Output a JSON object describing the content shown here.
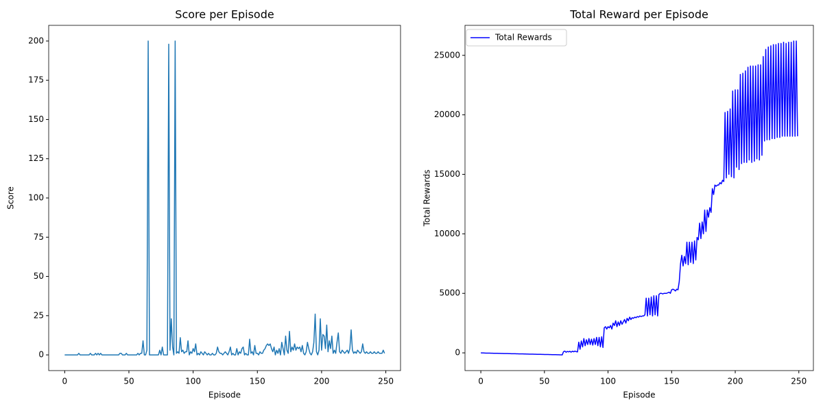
{
  "chart_data": [
    {
      "type": "line",
      "title": "Score per Episode",
      "x_label": "Episode",
      "y_label": "Score",
      "xlim": [
        -12.45,
        261.45
      ],
      "ylim": [
        -10,
        210
      ],
      "xticks": [
        0,
        50,
        100,
        150,
        200,
        250
      ],
      "yticks": [
        0,
        25,
        50,
        75,
        100,
        125,
        150,
        175,
        200
      ],
      "grid": false,
      "x": [
        0,
        1,
        2,
        3,
        4,
        5,
        6,
        7,
        8,
        9,
        10,
        11,
        12,
        13,
        14,
        15,
        16,
        17,
        18,
        19,
        20,
        21,
        22,
        23,
        24,
        25,
        26,
        27,
        28,
        29,
        30,
        31,
        32,
        33,
        34,
        35,
        36,
        37,
        38,
        39,
        40,
        41,
        42,
        43,
        44,
        45,
        46,
        47,
        48,
        49,
        50,
        51,
        52,
        53,
        54,
        55,
        56,
        57,
        58,
        59,
        60,
        61,
        62,
        63,
        64,
        65,
        66,
        67,
        68,
        69,
        70,
        71,
        72,
        73,
        74,
        75,
        76,
        77,
        78,
        79,
        80,
        81,
        82,
        83,
        84,
        85,
        86,
        87,
        88,
        89,
        90,
        91,
        92,
        93,
        94,
        95,
        96,
        97,
        98,
        99,
        100,
        101,
        102,
        103,
        104,
        105,
        106,
        107,
        108,
        109,
        110,
        111,
        112,
        113,
        114,
        115,
        116,
        117,
        118,
        119,
        120,
        121,
        122,
        123,
        124,
        125,
        126,
        127,
        128,
        129,
        130,
        131,
        132,
        133,
        134,
        135,
        136,
        137,
        138,
        139,
        140,
        141,
        142,
        143,
        144,
        145,
        146,
        147,
        148,
        149,
        150,
        151,
        152,
        153,
        154,
        155,
        156,
        157,
        158,
        159,
        160,
        161,
        162,
        163,
        164,
        165,
        166,
        167,
        168,
        169,
        170,
        171,
        172,
        173,
        174,
        175,
        176,
        177,
        178,
        179,
        180,
        181,
        182,
        183,
        184,
        185,
        186,
        187,
        188,
        189,
        190,
        191,
        192,
        193,
        194,
        195,
        196,
        197,
        198,
        199,
        200,
        201,
        202,
        203,
        204,
        205,
        206,
        207,
        208,
        209,
        210,
        211,
        212,
        213,
        214,
        215,
        216,
        217,
        218,
        219,
        220,
        221,
        222,
        223,
        224,
        225,
        226,
        227,
        228,
        229,
        230,
        231,
        232,
        233,
        234,
        235,
        236,
        237,
        238,
        239,
        240,
        241,
        242,
        243,
        244,
        245,
        246,
        247,
        248,
        249
      ],
      "series": [
        {
          "color": "#1f77b4",
          "values": [
            0,
            0,
            0,
            0,
            0,
            0,
            0,
            0,
            0,
            0,
            0,
            1,
            0,
            0,
            0,
            0,
            0,
            0,
            0,
            0,
            1,
            0,
            0,
            0,
            1,
            0,
            1,
            0,
            1,
            0,
            0,
            0,
            0,
            0,
            0,
            0,
            0,
            0,
            0,
            0,
            0,
            0,
            0,
            1,
            1,
            0,
            0,
            0,
            1,
            0,
            0,
            0,
            0,
            0,
            0,
            0,
            0,
            1,
            0,
            1,
            1,
            9,
            0,
            0,
            3,
            200,
            0,
            0,
            0,
            0,
            0,
            0,
            0,
            0,
            3,
            0,
            5,
            0,
            0,
            0,
            0,
            198,
            3,
            23,
            5,
            0,
            200,
            1,
            2,
            1,
            11,
            2,
            3,
            1,
            2,
            2,
            9,
            0,
            2,
            1,
            4,
            2,
            7,
            0,
            1,
            0,
            2,
            1,
            0,
            2,
            1,
            0,
            1,
            0,
            0,
            1,
            0,
            0,
            1,
            5,
            2,
            1,
            1,
            0,
            1,
            2,
            1,
            0,
            2,
            5,
            0,
            1,
            0,
            0,
            4,
            0,
            2,
            1,
            4,
            5,
            0,
            1,
            0,
            0,
            10,
            1,
            2,
            0,
            6,
            1,
            1,
            0,
            2,
            1,
            1,
            3,
            4,
            6,
            7,
            6,
            7,
            4,
            2,
            5,
            0,
            3,
            1,
            4,
            0,
            8,
            4,
            0,
            12,
            3,
            1,
            15,
            2,
            5,
            3,
            7,
            3,
            5,
            4,
            5,
            2,
            6,
            1,
            0,
            2,
            8,
            4,
            1,
            0,
            2,
            8,
            26,
            2,
            0,
            3,
            23,
            3,
            13,
            12,
            4,
            19,
            2,
            9,
            4,
            12,
            1,
            3,
            1,
            8,
            14,
            2,
            1,
            3,
            2,
            1,
            2,
            3,
            1,
            4,
            16,
            3,
            1,
            2,
            1,
            3,
            2,
            1,
            2,
            7,
            2,
            1,
            2,
            1,
            1,
            2,
            1,
            1,
            2,
            1,
            1,
            2,
            1,
            1,
            1,
            3,
            1
          ]
        }
      ]
    },
    {
      "type": "line",
      "title": "Total Reward per Episode",
      "x_label": "Episode",
      "y_label": "Total Rewards",
      "xlim": [
        -12.45,
        261.45
      ],
      "ylim": [
        -1490,
        27520
      ],
      "xticks": [
        0,
        50,
        100,
        150,
        200,
        250
      ],
      "yticks": [
        0,
        5000,
        10000,
        15000,
        20000,
        25000
      ],
      "grid": false,
      "legend": "upper left",
      "x": [
        0,
        1,
        2,
        3,
        4,
        5,
        6,
        7,
        8,
        9,
        10,
        11,
        12,
        13,
        14,
        15,
        16,
        17,
        18,
        19,
        20,
        21,
        22,
        23,
        24,
        25,
        26,
        27,
        28,
        29,
        30,
        31,
        32,
        33,
        34,
        35,
        36,
        37,
        38,
        39,
        40,
        41,
        42,
        43,
        44,
        45,
        46,
        47,
        48,
        49,
        50,
        51,
        52,
        53,
        54,
        55,
        56,
        57,
        58,
        59,
        60,
        61,
        62,
        63,
        64,
        65,
        66,
        67,
        68,
        69,
        70,
        71,
        72,
        73,
        74,
        75,
        76,
        77,
        78,
        79,
        80,
        81,
        82,
        83,
        84,
        85,
        86,
        87,
        88,
        89,
        90,
        91,
        92,
        93,
        94,
        95,
        96,
        97,
        98,
        99,
        100,
        101,
        102,
        103,
        104,
        105,
        106,
        107,
        108,
        109,
        110,
        111,
        112,
        113,
        114,
        115,
        116,
        117,
        118,
        119,
        120,
        121,
        122,
        123,
        124,
        125,
        126,
        127,
        128,
        129,
        130,
        131,
        132,
        133,
        134,
        135,
        136,
        137,
        138,
        139,
        140,
        141,
        142,
        143,
        144,
        145,
        146,
        147,
        148,
        149,
        150,
        151,
        152,
        153,
        154,
        155,
        156,
        157,
        158,
        159,
        160,
        161,
        162,
        163,
        164,
        165,
        166,
        167,
        168,
        169,
        170,
        171,
        172,
        173,
        174,
        175,
        176,
        177,
        178,
        179,
        180,
        181,
        182,
        183,
        184,
        185,
        186,
        187,
        188,
        189,
        190,
        191,
        192,
        193,
        194,
        195,
        196,
        197,
        198,
        199,
        200,
        201,
        202,
        203,
        204,
        205,
        206,
        207,
        208,
        209,
        210,
        211,
        212,
        213,
        214,
        215,
        216,
        217,
        218,
        219,
        220,
        221,
        222,
        223,
        224,
        225,
        226,
        227,
        228,
        229,
        230,
        231,
        232,
        233,
        234,
        235,
        236,
        237,
        238,
        239,
        240,
        241,
        242,
        243,
        244,
        245,
        246,
        247,
        248,
        249
      ],
      "series": [
        {
          "name": "Total Rewards",
          "color": "blue",
          "values": [
            0,
            -5,
            -10,
            -15,
            -20,
            -20,
            -25,
            -25,
            -30,
            -30,
            -35,
            -35,
            -40,
            -40,
            -45,
            -45,
            -50,
            -50,
            -55,
            -55,
            -60,
            -60,
            -65,
            -65,
            -70,
            -70,
            -75,
            -75,
            -80,
            -80,
            -85,
            -85,
            -90,
            -90,
            -95,
            -95,
            -100,
            -100,
            -105,
            -105,
            -110,
            -110,
            -115,
            -115,
            -120,
            -120,
            -125,
            -125,
            -130,
            -130,
            -135,
            -135,
            -140,
            -140,
            -145,
            -145,
            -150,
            -150,
            -155,
            -155,
            -160,
            -160,
            -165,
            -165,
            -170,
            100,
            150,
            50,
            120,
            80,
            130,
            60,
            140,
            90,
            150,
            100,
            80,
            900,
            300,
            1000,
            500,
            1200,
            600,
            1100,
            700,
            1200,
            700,
            1150,
            650,
            1200,
            700,
            1300,
            600,
            1300,
            500,
            1350,
            450,
            2100,
            2200,
            2000,
            2200,
            2100,
            2300,
            2000,
            2500,
            2300,
            2700,
            2200,
            2600,
            2300,
            2700,
            2400,
            2600,
            2800,
            2500,
            2900,
            2700,
            3000,
            2800,
            2950,
            2900,
            3000,
            2950,
            3050,
            3000,
            3100,
            3050,
            3100,
            3100,
            3200,
            4600,
            3100,
            4600,
            3200,
            4700,
            3100,
            4800,
            3200,
            4800,
            3100,
            4900,
            5000,
            5000,
            4950,
            5000,
            5000,
            5000,
            5050,
            5100,
            5000,
            5300,
            5350,
            5300,
            5200,
            5350,
            5300,
            6000,
            7500,
            8200,
            7300,
            8100,
            7500,
            9300,
            7400,
            9300,
            7600,
            9300,
            7500,
            9400,
            7800,
            9700,
            9500,
            10900,
            9600,
            11000,
            10000,
            12000,
            10200,
            12000,
            11400,
            12200,
            11800,
            13800,
            13300,
            14100,
            14000,
            14100,
            14100,
            14300,
            14200,
            14500,
            14400,
            20200,
            14700,
            20300,
            15000,
            20500,
            14800,
            22000,
            14700,
            22100,
            15600,
            22100,
            15400,
            23400,
            15900,
            23500,
            16000,
            23700,
            16000,
            24000,
            16200,
            24100,
            16000,
            24100,
            16100,
            24100,
            16300,
            24200,
            16200,
            24200,
            16600,
            24900,
            17800,
            25500,
            17900,
            25700,
            17900,
            25800,
            18000,
            25900,
            18000,
            25900,
            18100,
            26000,
            18100,
            26000,
            18200,
            26100,
            18200,
            26000,
            18200,
            26100,
            18200,
            26100,
            18200,
            26200,
            18200,
            26200,
            18200
          ]
        }
      ]
    }
  ]
}
